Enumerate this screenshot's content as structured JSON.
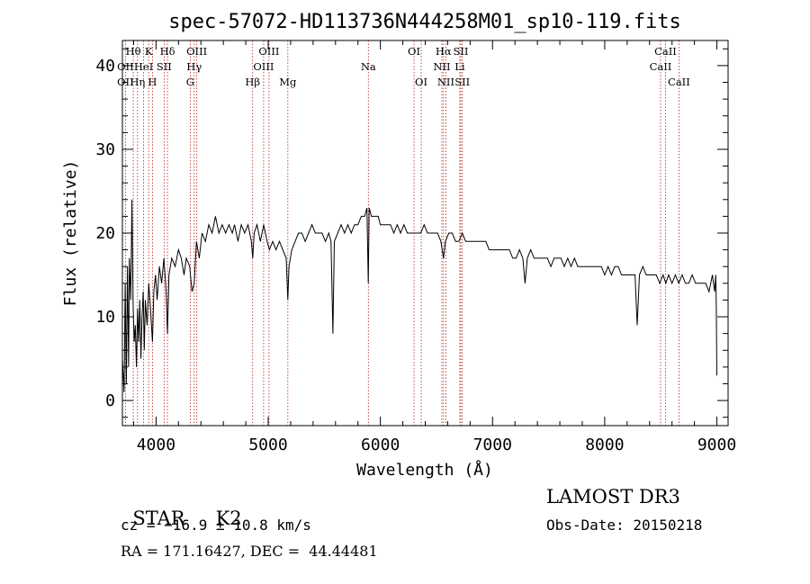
{
  "chart_data": {
    "type": "line",
    "title": "spec-57072-HD113736N444258M01_sp10-119.fits",
    "xlabel": "Wavelength (Å)",
    "ylabel": "Flux (relative)",
    "xlim": [
      3700,
      9100
    ],
    "ylim": [
      -3,
      43
    ],
    "x_ticks": [
      4000,
      5000,
      6000,
      7000,
      8000,
      9000
    ],
    "y_ticks": [
      0,
      10,
      20,
      30,
      40
    ],
    "series": [
      {
        "name": "flux",
        "points": [
          [
            3700,
            5
          ],
          [
            3715,
            1
          ],
          [
            3725,
            14
          ],
          [
            3735,
            2
          ],
          [
            3745,
            16
          ],
          [
            3755,
            4
          ],
          [
            3762,
            17
          ],
          [
            3775,
            12
          ],
          [
            3785,
            24
          ],
          [
            3795,
            12
          ],
          [
            3805,
            7
          ],
          [
            3815,
            9
          ],
          [
            3825,
            4
          ],
          [
            3835,
            11
          ],
          [
            3845,
            7
          ],
          [
            3855,
            12
          ],
          [
            3865,
            5
          ],
          [
            3875,
            10
          ],
          [
            3885,
            13
          ],
          [
            3895,
            6
          ],
          [
            3905,
            12
          ],
          [
            3920,
            9
          ],
          [
            3935,
            14
          ],
          [
            3950,
            11
          ],
          [
            3968,
            7
          ],
          [
            3980,
            13
          ],
          [
            3995,
            15
          ],
          [
            4010,
            12
          ],
          [
            4030,
            16
          ],
          [
            4050,
            14
          ],
          [
            4070,
            17
          ],
          [
            4090,
            13
          ],
          [
            4102,
            8
          ],
          [
            4115,
            15
          ],
          [
            4140,
            17
          ],
          [
            4170,
            16
          ],
          [
            4200,
            18
          ],
          [
            4225,
            17
          ],
          [
            4250,
            15
          ],
          [
            4270,
            17
          ],
          [
            4300,
            16
          ],
          [
            4320,
            13
          ],
          [
            4340,
            14
          ],
          [
            4360,
            19
          ],
          [
            4385,
            17
          ],
          [
            4410,
            20
          ],
          [
            4440,
            19
          ],
          [
            4470,
            21
          ],
          [
            4500,
            20
          ],
          [
            4530,
            22
          ],
          [
            4560,
            20
          ],
          [
            4590,
            21
          ],
          [
            4620,
            20
          ],
          [
            4650,
            21
          ],
          [
            4680,
            20
          ],
          [
            4700,
            21
          ],
          [
            4730,
            19
          ],
          [
            4760,
            21
          ],
          [
            4790,
            20
          ],
          [
            4820,
            21
          ],
          [
            4850,
            19
          ],
          [
            4862,
            17
          ],
          [
            4875,
            20
          ],
          [
            4900,
            21
          ],
          [
            4930,
            19
          ],
          [
            4960,
            21
          ],
          [
            4990,
            19
          ],
          [
            5010,
            18
          ],
          [
            5040,
            19
          ],
          [
            5070,
            18
          ],
          [
            5100,
            19
          ],
          [
            5130,
            18
          ],
          [
            5160,
            17
          ],
          [
            5175,
            12
          ],
          [
            5185,
            16
          ],
          [
            5210,
            18
          ],
          [
            5240,
            19
          ],
          [
            5270,
            20
          ],
          [
            5300,
            20
          ],
          [
            5330,
            19
          ],
          [
            5360,
            20
          ],
          [
            5390,
            21
          ],
          [
            5420,
            20
          ],
          [
            5450,
            20
          ],
          [
            5480,
            20
          ],
          [
            5510,
            19
          ],
          [
            5540,
            20
          ],
          [
            5560,
            19
          ],
          [
            5577,
            8
          ],
          [
            5590,
            19
          ],
          [
            5620,
            20
          ],
          [
            5650,
            21
          ],
          [
            5680,
            20
          ],
          [
            5710,
            21
          ],
          [
            5740,
            20
          ],
          [
            5770,
            21
          ],
          [
            5800,
            21
          ],
          [
            5830,
            22
          ],
          [
            5860,
            22
          ],
          [
            5880,
            23
          ],
          [
            5892,
            14
          ],
          [
            5900,
            23
          ],
          [
            5920,
            22
          ],
          [
            5950,
            22
          ],
          [
            5980,
            22
          ],
          [
            6000,
            21
          ],
          [
            6030,
            21
          ],
          [
            6060,
            21
          ],
          [
            6090,
            21
          ],
          [
            6120,
            20
          ],
          [
            6150,
            21
          ],
          [
            6180,
            20
          ],
          [
            6210,
            21
          ],
          [
            6240,
            20
          ],
          [
            6270,
            20
          ],
          [
            6300,
            20
          ],
          [
            6330,
            20
          ],
          [
            6360,
            20
          ],
          [
            6390,
            21
          ],
          [
            6420,
            20
          ],
          [
            6450,
            20
          ],
          [
            6480,
            20
          ],
          [
            6510,
            20
          ],
          [
            6540,
            19
          ],
          [
            6563,
            17
          ],
          [
            6580,
            19
          ],
          [
            6610,
            20
          ],
          [
            6640,
            20
          ],
          [
            6670,
            19
          ],
          [
            6700,
            19
          ],
          [
            6730,
            20
          ],
          [
            6760,
            19
          ],
          [
            6790,
            19
          ],
          [
            6820,
            19
          ],
          [
            6850,
            19
          ],
          [
            6880,
            19
          ],
          [
            6910,
            19
          ],
          [
            6940,
            19
          ],
          [
            6970,
            18
          ],
          [
            7000,
            18
          ],
          [
            7030,
            18
          ],
          [
            7060,
            18
          ],
          [
            7090,
            18
          ],
          [
            7120,
            18
          ],
          [
            7150,
            18
          ],
          [
            7180,
            17
          ],
          [
            7210,
            17
          ],
          [
            7240,
            18
          ],
          [
            7270,
            17
          ],
          [
            7290,
            14
          ],
          [
            7310,
            17
          ],
          [
            7340,
            18
          ],
          [
            7370,
            17
          ],
          [
            7400,
            17
          ],
          [
            7430,
            17
          ],
          [
            7460,
            17
          ],
          [
            7490,
            17
          ],
          [
            7520,
            16
          ],
          [
            7550,
            17
          ],
          [
            7580,
            17
          ],
          [
            7610,
            17
          ],
          [
            7640,
            16
          ],
          [
            7670,
            17
          ],
          [
            7700,
            16
          ],
          [
            7730,
            17
          ],
          [
            7760,
            16
          ],
          [
            7790,
            16
          ],
          [
            7820,
            16
          ],
          [
            7850,
            16
          ],
          [
            7880,
            16
          ],
          [
            7910,
            16
          ],
          [
            7940,
            16
          ],
          [
            7970,
            16
          ],
          [
            8000,
            15
          ],
          [
            8030,
            16
          ],
          [
            8060,
            15
          ],
          [
            8090,
            16
          ],
          [
            8120,
            16
          ],
          [
            8150,
            15
          ],
          [
            8180,
            15
          ],
          [
            8210,
            15
          ],
          [
            8240,
            15
          ],
          [
            8270,
            15
          ],
          [
            8290,
            9
          ],
          [
            8310,
            15
          ],
          [
            8340,
            16
          ],
          [
            8370,
            15
          ],
          [
            8400,
            15
          ],
          [
            8430,
            15
          ],
          [
            8460,
            15
          ],
          [
            8490,
            14
          ],
          [
            8520,
            15
          ],
          [
            8545,
            14
          ],
          [
            8570,
            15
          ],
          [
            8600,
            14
          ],
          [
            8630,
            15
          ],
          [
            8660,
            14
          ],
          [
            8690,
            15
          ],
          [
            8720,
            14
          ],
          [
            8750,
            14
          ],
          [
            8780,
            15
          ],
          [
            8810,
            14
          ],
          [
            8840,
            14
          ],
          [
            8870,
            14
          ],
          [
            8900,
            14
          ],
          [
            8930,
            13
          ],
          [
            8960,
            15
          ],
          [
            8980,
            13
          ],
          [
            8990,
            15
          ],
          [
            8995,
            11
          ],
          [
            9000,
            3
          ]
        ]
      }
    ],
    "spectral_lines": [
      {
        "label": "Hθ",
        "x": 3797,
        "row": 0
      },
      {
        "label": "OII",
        "x": 3727,
        "row": 1
      },
      {
        "label": "OII",
        "x": 3727,
        "row": 2
      },
      {
        "label": "Hη",
        "x": 3835,
        "row": 2
      },
      {
        "label": "HeI",
        "x": 3889,
        "row": 1
      },
      {
        "label": "K",
        "x": 3934,
        "row": 0
      },
      {
        "label": "H",
        "x": 3968,
        "row": 2
      },
      {
        "label": "SII",
        "x": 4072,
        "row": 1
      },
      {
        "label": "Hδ",
        "x": 4102,
        "row": 0
      },
      {
        "label": "OIII",
        "x": 4363,
        "row": 0
      },
      {
        "label": "Hγ",
        "x": 4340,
        "row": 1
      },
      {
        "label": "G",
        "x": 4305,
        "row": 2
      },
      {
        "label": "Hβ",
        "x": 4861,
        "row": 2
      },
      {
        "label": "OIII",
        "x": 5007,
        "row": 0
      },
      {
        "label": "OIII",
        "x": 4959,
        "row": 1
      },
      {
        "label": "Mg",
        "x": 5175,
        "row": 2
      },
      {
        "label": "Na",
        "x": 5893,
        "row": 1
      },
      {
        "label": "OI",
        "x": 6300,
        "row": 0
      },
      {
        "label": "OI",
        "x": 6364,
        "row": 2
      },
      {
        "label": "Hα",
        "x": 6563,
        "row": 0
      },
      {
        "label": "SII",
        "x": 6717,
        "row": 0
      },
      {
        "label": "NII",
        "x": 6548,
        "row": 1
      },
      {
        "label": "Li",
        "x": 6708,
        "row": 1
      },
      {
        "label": "NII",
        "x": 6584,
        "row": 2
      },
      {
        "label": "SII",
        "x": 6731,
        "row": 2
      },
      {
        "label": "CaII",
        "x": 8542,
        "row": 0
      },
      {
        "label": "CaII",
        "x": 8498,
        "row": 1
      },
      {
        "label": "CaII",
        "x": 8662,
        "row": 2
      }
    ],
    "line_color": "#000000",
    "marker_color": "#b22222"
  },
  "info": {
    "class": "STAR",
    "subclass": "K2",
    "survey": "LAMOST DR3",
    "cz": "cz = −16.9 ± 10.8 km/s",
    "obs_date": "Obs-Date: 20150218",
    "coords": "RA = 171.16427, DEC =  44.44481"
  }
}
